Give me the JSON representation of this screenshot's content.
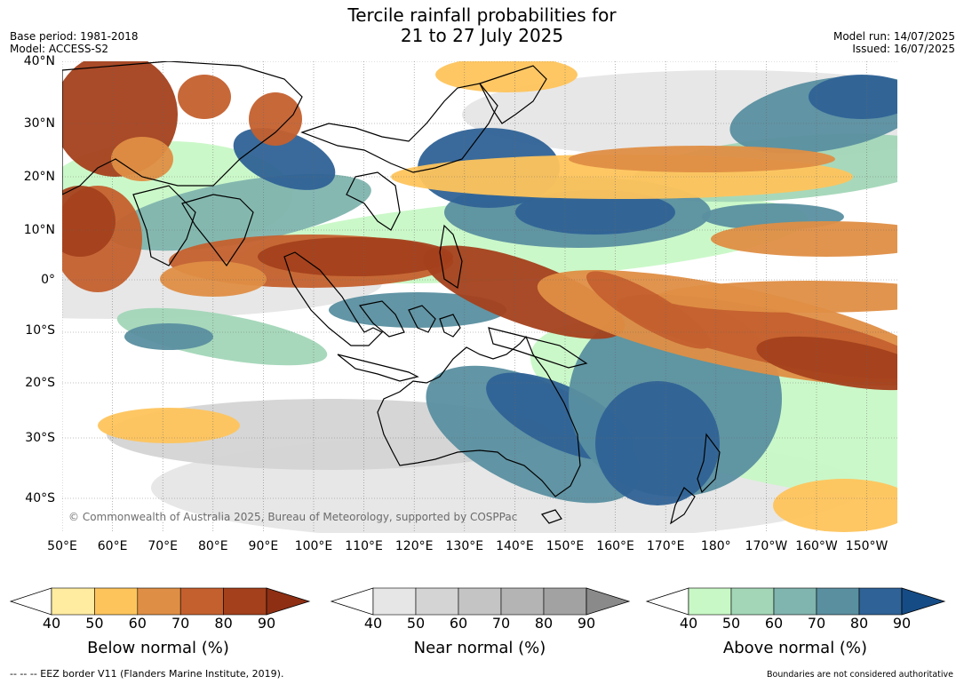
{
  "header": {
    "title_line1": "Tercile rainfall probabilities for",
    "title_line2": "21 to 27 July 2025",
    "base_period": "Base period: 1981-2018",
    "model": "Model: ACCESS-S2",
    "model_run": "Model run: 14/07/2025",
    "issued": "Issued: 16/07/2025"
  },
  "map": {
    "lat_labels": [
      "40°N",
      "30°N",
      "20°N",
      "10°N",
      "0°",
      "10°S",
      "20°S",
      "30°S",
      "40°S"
    ],
    "lon_labels": [
      "50°E",
      "60°E",
      "70°E",
      "80°E",
      "90°E",
      "100°E",
      "110°E",
      "120°E",
      "130°E",
      "140°E",
      "150°E",
      "160°E",
      "170°E",
      "180°",
      "170°W",
      "160°W",
      "150°W"
    ],
    "copyright": "© Commonwealth of Australia 2025, Bureau of Meteorology, supported by COSPPac",
    "colors": {
      "below": [
        "#ffeca0",
        "#fec45c",
        "#df8e45",
        "#c4602e",
        "#a4401c",
        "#8e2f14"
      ],
      "near": [
        "#e6e6e6",
        "#d4d4d4",
        "#c4c4c4",
        "#b4b4b4",
        "#a2a2a2",
        "#8a8a8a"
      ],
      "above": [
        "#c8f8c6",
        "#a2d6b7",
        "#80b4ae",
        "#5a8fa0",
        "#2f6296",
        "#164c86"
      ],
      "land_outline": "#000000",
      "border": "#888888"
    }
  },
  "colorbars": [
    {
      "label": "Below normal (%)",
      "ticks": [
        "40",
        "50",
        "60",
        "70",
        "80",
        "90"
      ]
    },
    {
      "label": "Near normal (%)",
      "ticks": [
        "40",
        "50",
        "60",
        "70",
        "80",
        "90"
      ]
    },
    {
      "label": "Above normal (%)",
      "ticks": [
        "40",
        "50",
        "60",
        "70",
        "80",
        "90"
      ]
    }
  ],
  "footer": {
    "eez": "--  --  -- EEZ border V11 (Flanders Marine Institute, 2019).",
    "disclaimer": "Boundaries are not considered authoritative"
  }
}
